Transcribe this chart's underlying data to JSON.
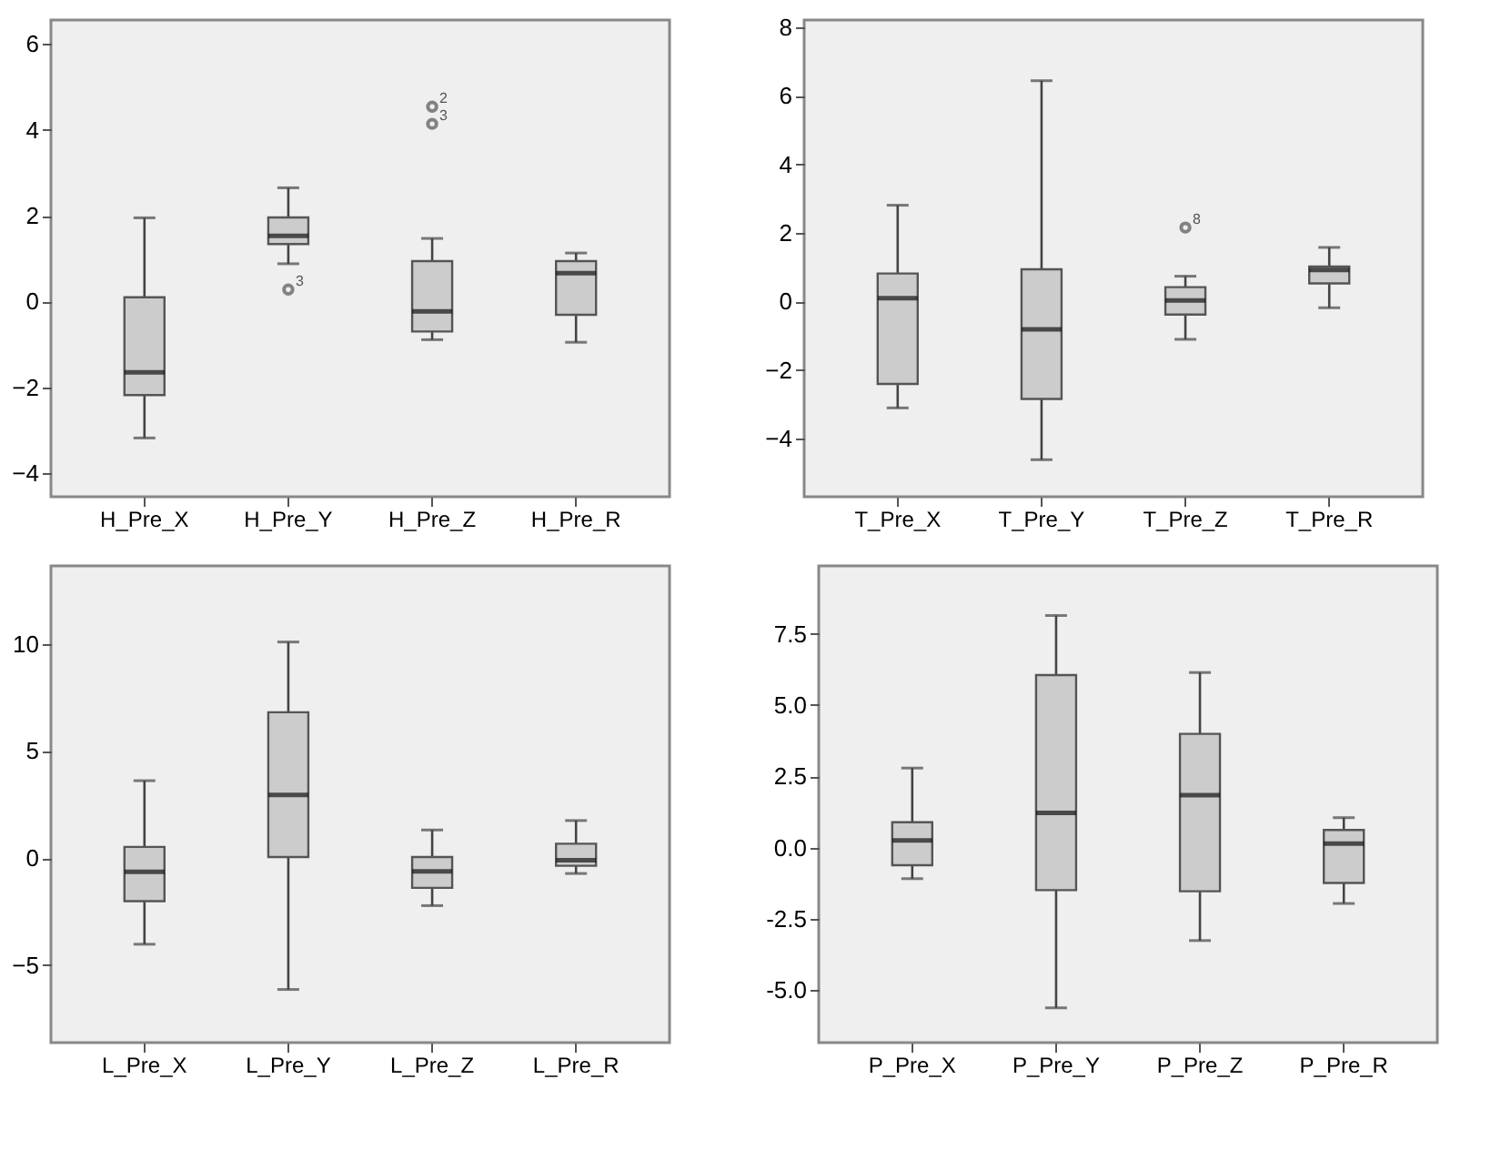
{
  "chart_data": [
    {
      "type": "box",
      "categories": [
        "H_Pre_X",
        "H_Pre_Y",
        "H_Pre_Z",
        "H_Pre_R"
      ],
      "ylim": [
        -4.55,
        6.56
      ],
      "yticks": [
        -4,
        -2,
        0,
        2,
        4,
        6
      ],
      "grid": false,
      "color": "#cccccc",
      "boxes": [
        {
          "low": -3.18,
          "q1": -2.18,
          "median": -1.65,
          "q3": 0.1,
          "high": 1.95
        },
        {
          "low": 0.88,
          "q1": 1.34,
          "median": 1.53,
          "q3": 1.96,
          "high": 2.65,
          "outliers": [
            0.28
          ]
        },
        {
          "low": -0.89,
          "q1": -0.7,
          "median": -0.23,
          "q3": 0.94,
          "high": 1.47,
          "outliers": [
            4.54,
            4.14
          ]
        },
        {
          "low": -0.95,
          "q1": -0.31,
          "median": 0.66,
          "q3": 0.94,
          "high": 1.13
        }
      ],
      "annotations": [
        "3",
        "2",
        "3"
      ]
    },
    {
      "type": "box",
      "categories": [
        "T_Pre_X",
        "T_Pre_Y",
        "T_Pre_Z",
        "T_Pre_R"
      ],
      "ylim": [
        -5.69,
        8.21
      ],
      "yticks": [
        -4,
        -2,
        0,
        2,
        4,
        6,
        8
      ],
      "grid": false,
      "color": "#cccccc",
      "boxes": [
        {
          "low": -3.1,
          "q1": -2.4,
          "median": 0.1,
          "q3": 0.82,
          "high": 2.81
        },
        {
          "low": -4.61,
          "q1": -2.84,
          "median": -0.81,
          "q3": 0.94,
          "high": 6.44
        },
        {
          "low": -1.1,
          "q1": -0.38,
          "median": 0.03,
          "q3": 0.42,
          "high": 0.74,
          "outliers": [
            2.16
          ]
        },
        {
          "low": -0.18,
          "q1": 0.53,
          "median": 0.92,
          "q3": 1.02,
          "high": 1.58
        }
      ],
      "annotations": [
        "8"
      ]
    },
    {
      "type": "box",
      "categories": [
        "L_Pre_X",
        "L_Pre_Y",
        "L_Pre_Z",
        "L_Pre_R"
      ],
      "ylim": [
        -8.61,
        13.63
      ],
      "yticks": [
        -5,
        0,
        5,
        10
      ],
      "grid": false,
      "color": "#cccccc",
      "boxes": [
        {
          "low": -4.02,
          "q1": -2.01,
          "median": -0.64,
          "q3": 0.52,
          "high": 3.61
        },
        {
          "low": -6.13,
          "q1": 0.05,
          "median": 2.94,
          "q3": 6.8,
          "high": 10.08
        },
        {
          "low": -2.22,
          "q1": -1.39,
          "median": -0.62,
          "q3": 0.05,
          "high": 1.31
        },
        {
          "low": -0.72,
          "q1": -0.36,
          "median": -0.1,
          "q3": 0.67,
          "high": 1.75
        }
      ]
    },
    {
      "type": "box",
      "categories": [
        "P_Pre_X",
        "P_Pre_Y",
        "P_Pre_Z",
        "P_Pre_R"
      ],
      "ylim": [
        -6.84,
        9.88
      ],
      "yticks": [
        {
          "value": -5,
          "label": "-5.0"
        },
        {
          "value": -2.5,
          "label": "-2.5"
        },
        {
          "value": 0,
          "label": "0.0"
        },
        {
          "value": 2.5,
          "label": "2.5"
        },
        {
          "value": 5,
          "label": "5.0"
        },
        {
          "value": 7.5,
          "label": "7.5"
        }
      ],
      "grid": false,
      "color": "#cccccc",
      "boxes": [
        {
          "low": -1.09,
          "q1": -0.62,
          "median": 0.25,
          "q3": 0.89,
          "high": 2.79
        },
        {
          "low": -5.62,
          "q1": -1.49,
          "median": 1.22,
          "q3": 6.05,
          "high": 8.14
        },
        {
          "low": -3.26,
          "q1": -1.53,
          "median": 1.84,
          "q3": 3.99,
          "high": 6.14
        },
        {
          "low": -1.96,
          "q1": -1.24,
          "median": 0.14,
          "q3": 0.62,
          "high": 1.05
        }
      ]
    }
  ]
}
